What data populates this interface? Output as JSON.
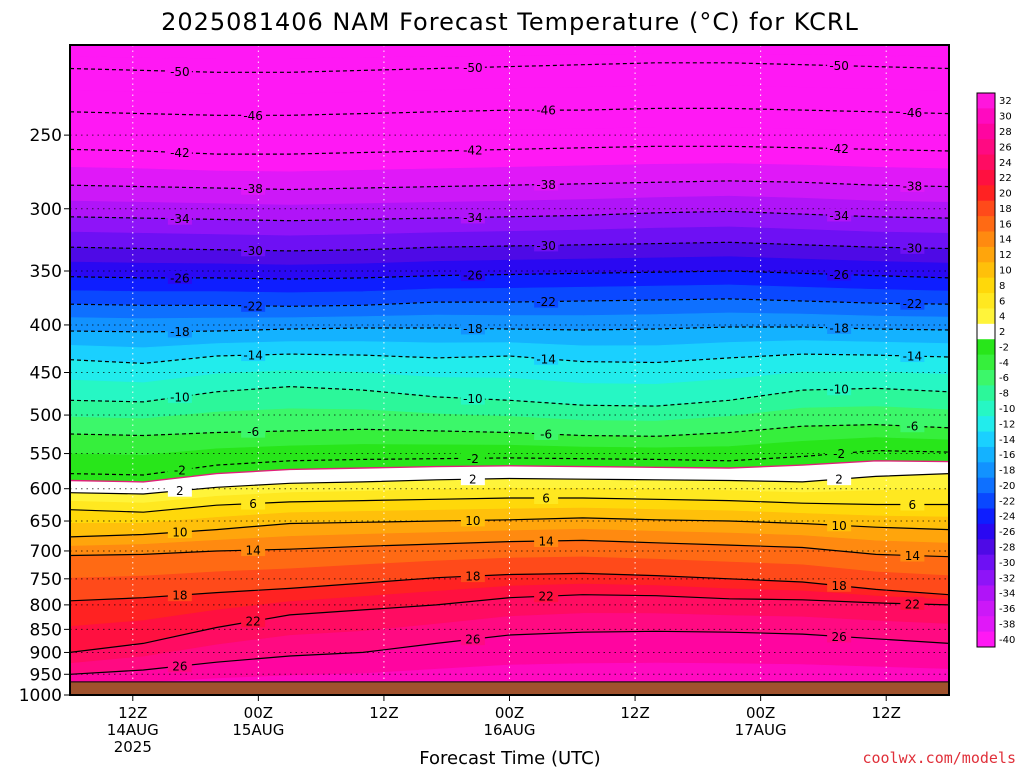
{
  "chart_data": {
    "type": "heatmap",
    "title": "2025081406 NAM Forecast Temperature (°C) for KCRL",
    "xlabel": "Forecast Time (UTC)",
    "ylabel": "",
    "y_scale": "log-pressure",
    "y_unit": "hPa",
    "ylim": [
      1000,
      200
    ],
    "y_ticks": [
      250,
      300,
      350,
      400,
      450,
      500,
      550,
      600,
      650,
      700,
      750,
      800,
      850,
      900,
      950,
      1000
    ],
    "x_ticks": [
      {
        "hour": 6,
        "labels": [
          "12Z",
          "14AUG",
          "2025"
        ]
      },
      {
        "hour": 18,
        "labels": [
          "00Z",
          "15AUG"
        ]
      },
      {
        "hour": 30,
        "labels": [
          "12Z"
        ]
      },
      {
        "hour": 42,
        "labels": [
          "00Z",
          "16AUG"
        ]
      },
      {
        "hour": 54,
        "labels": [
          "12Z"
        ]
      },
      {
        "hour": 66,
        "labels": [
          "00Z",
          "17AUG"
        ]
      },
      {
        "hour": 78,
        "labels": [
          "12Z"
        ]
      }
    ],
    "xlim_forecast_hours": [
      0,
      84
    ],
    "surface_pressure_hPa": 968,
    "grid": true,
    "contour_interval": 4,
    "colorbar": {
      "levels": [
        32,
        30,
        28,
        26,
        24,
        22,
        20,
        18,
        16,
        14,
        12,
        10,
        8,
        6,
        4,
        2,
        -2,
        -4,
        -6,
        -8,
        -10,
        -12,
        -14,
        -16,
        -18,
        -20,
        -22,
        -24,
        -26,
        -28,
        -30,
        -32,
        -34,
        -36,
        -38,
        -40
      ],
      "colors": [
        "#ff16dd",
        "#ff0ac0",
        "#ff05a0",
        "#ff0a82",
        "#ff0c62",
        "#ff1040",
        "#ff2222",
        "#ff4a1a",
        "#ff6a14",
        "#ff8a10",
        "#ffa50c",
        "#ffc00a",
        "#ffd80a",
        "#ffe820",
        "#fff43a",
        "#ffffff",
        "#28e61a",
        "#36ef3c",
        "#3cf76a",
        "#2cf79a",
        "#26f7c4",
        "#22ecec",
        "#1ad0ff",
        "#14b2ff",
        "#1292ff",
        "#0e70ff",
        "#0a48ff",
        "#0e1eff",
        "#2a08f2",
        "#4e0ae6",
        "#6e10f4",
        "#8e14f8",
        "#b014f8",
        "#cc18f8",
        "#e018f8",
        "#ff18f4"
      ]
    },
    "series": [
      {
        "name": "-50",
        "style": "dashed",
        "pressures_hPa": [
          212,
          213,
          214,
          214,
          213,
          212,
          211,
          210,
          209,
          209,
          210,
          211,
          212
        ]
      },
      {
        "name": "-46",
        "style": "dashed",
        "pressures_hPa": [
          236,
          237,
          238,
          238,
          237,
          236,
          235,
          235,
          234,
          234,
          235,
          236,
          237
        ]
      },
      {
        "name": "-42",
        "style": "dashed",
        "pressures_hPa": [
          259,
          260,
          262,
          262,
          261,
          260,
          259,
          258,
          257,
          257,
          258,
          259,
          260
        ]
      },
      {
        "name": "-38",
        "style": "dashed",
        "pressures_hPa": [
          283,
          284,
          285,
          286,
          285,
          284,
          283,
          282,
          281,
          280,
          281,
          283,
          284
        ]
      },
      {
        "name": "-34",
        "style": "dashed",
        "pressures_hPa": [
          306,
          307,
          308,
          309,
          308,
          307,
          306,
          305,
          303,
          302,
          304,
          306,
          307
        ]
      },
      {
        "name": "-30",
        "style": "dashed",
        "pressures_hPa": [
          330,
          331,
          332,
          333,
          332,
          330,
          329,
          328,
          327,
          326,
          328,
          330,
          331
        ]
      },
      {
        "name": "-26",
        "style": "dashed",
        "pressures_hPa": [
          355,
          356,
          356,
          357,
          356,
          354,
          353,
          352,
          351,
          350,
          352,
          354,
          356
        ]
      },
      {
        "name": "-22",
        "style": "dashed",
        "pressures_hPa": [
          380,
          381,
          381,
          382,
          381,
          378,
          378,
          377,
          376,
          375,
          377,
          379,
          380
        ]
      },
      {
        "name": "-18",
        "style": "dashed",
        "pressures_hPa": [
          406,
          407,
          406,
          404,
          403,
          403,
          404,
          405,
          404,
          402,
          402,
          404,
          405
        ]
      },
      {
        "name": "-14",
        "style": "dashed",
        "pressures_hPa": [
          436,
          440,
          432,
          430,
          431,
          434,
          432,
          438,
          439,
          434,
          430,
          431,
          433
        ]
      },
      {
        "name": "-10",
        "style": "dashed",
        "pressures_hPa": [
          482,
          484,
          472,
          466,
          470,
          478,
          482,
          488,
          489,
          482,
          470,
          468,
          472
        ]
      },
      {
        "name": "-6",
        "style": "dashed",
        "pressures_hPa": [
          524,
          526,
          522,
          520,
          518,
          520,
          522,
          526,
          527,
          522,
          514,
          512,
          516
        ]
      },
      {
        "name": "-2",
        "style": "dashed",
        "pressures_hPa": [
          578,
          580,
          566,
          560,
          558,
          557,
          556,
          557,
          558,
          560,
          554,
          546,
          548
        ]
      },
      {
        "name": "0",
        "style": "pink",
        "pressures_hPa": [
          588,
          590,
          578,
          572,
          570,
          568,
          567,
          568,
          569,
          570,
          566,
          560,
          561
        ]
      },
      {
        "name": "2",
        "style": "solid",
        "pressures_hPa": [
          606,
          608,
          598,
          592,
          590,
          587,
          585,
          586,
          587,
          588,
          590,
          582,
          578
        ]
      },
      {
        "name": "6",
        "style": "solid",
        "pressures_hPa": [
          632,
          636,
          625,
          620,
          618,
          616,
          614,
          614,
          616,
          618,
          622,
          624,
          624
        ]
      },
      {
        "name": "10",
        "style": "solid",
        "pressures_hPa": [
          676,
          672,
          664,
          654,
          652,
          650,
          648,
          645,
          648,
          650,
          654,
          660,
          664
        ]
      },
      {
        "name": "14",
        "style": "solid",
        "pressures_hPa": [
          708,
          706,
          700,
          697,
          692,
          688,
          684,
          682,
          686,
          690,
          694,
          706,
          710
        ]
      },
      {
        "name": "18",
        "style": "solid",
        "pressures_hPa": [
          792,
          786,
          776,
          768,
          758,
          748,
          742,
          740,
          744,
          750,
          756,
          770,
          780
        ]
      },
      {
        "name": "22",
        "style": "solid",
        "pressures_hPa": [
          900,
          880,
          846,
          820,
          810,
          800,
          786,
          780,
          782,
          788,
          790,
          796,
          800
        ]
      },
      {
        "name": "26",
        "style": "solid",
        "pressures_hPa": [
          950,
          940,
          922,
          908,
          900,
          880,
          862,
          856,
          854,
          856,
          860,
          870,
          880
        ]
      }
    ],
    "annotations": [
      "-50",
      "-46",
      "-42",
      "-38",
      "-34",
      "-30",
      "-26",
      "-22",
      "-18",
      "-14",
      "-10",
      "-6",
      "-2",
      "2",
      "6",
      "10",
      "14",
      "18",
      "22",
      "26"
    ]
  },
  "footer": {
    "credit": "coolwx.com/models"
  },
  "colors": {
    "ground": "#a0522d",
    "ground_line": "#ffffff"
  }
}
